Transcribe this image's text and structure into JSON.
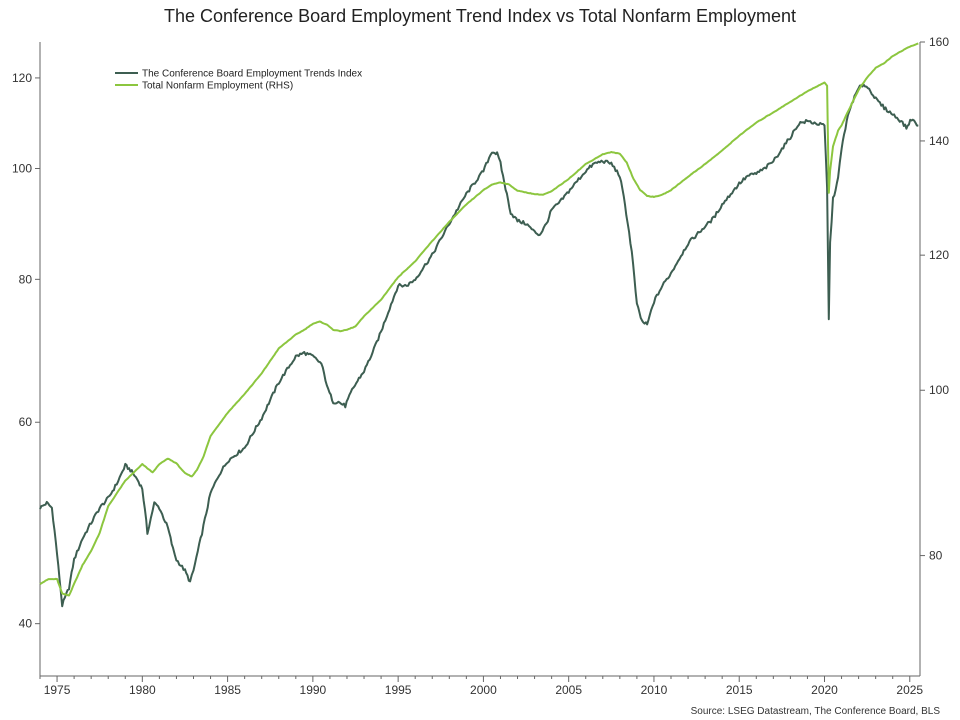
{
  "chart_data": {
    "type": "line",
    "title": "The Conference Board Employment Trend Index vs Total Nonfarm Employment",
    "source": "Source: LSEG Datastream, The Conference Board, BLS",
    "x_range": [
      1974.0,
      2025.6
    ],
    "left_axis": {
      "scale": "log",
      "range": [
        36,
        129
      ],
      "ticks": [
        40,
        60,
        80,
        100,
        120
      ]
    },
    "right_axis": {
      "scale": "log",
      "range": [
        68,
        160
      ],
      "ticks": [
        80,
        100,
        120,
        140,
        160
      ]
    },
    "x_ticks": [
      1975,
      1980,
      1985,
      1990,
      1995,
      2000,
      2005,
      2010,
      2015,
      2020,
      2025
    ],
    "x_tick_labels": [
      "1975",
      "1980",
      "1985",
      "1990",
      "1995",
      "2000",
      "2005",
      "2010",
      "2015",
      "2020",
      "2025"
    ],
    "legend_position": "top-left",
    "grid": false,
    "series": [
      {
        "name": "The Conference Board Employment Trends Index",
        "axis": "left",
        "color": "#3d5e51",
        "x": [
          1974.0,
          1974.4,
          1974.7,
          1975.0,
          1975.3,
          1975.7,
          1976.0,
          1976.5,
          1977.0,
          1977.5,
          1978.0,
          1978.5,
          1979.0,
          1979.3,
          1979.7,
          1980.0,
          1980.3,
          1980.5,
          1980.7,
          1981.0,
          1981.5,
          1981.8,
          1982.0,
          1982.5,
          1982.8,
          1983.0,
          1983.5,
          1984.0,
          1984.5,
          1985.0,
          1986.0,
          1987.0,
          1988.0,
          1989.0,
          1989.5,
          1990.0,
          1990.5,
          1990.9,
          1991.2,
          1991.5,
          1991.9,
          1992.3,
          1992.7,
          1993.0,
          1993.5,
          1994.0,
          1994.5,
          1995.0,
          1995.5,
          1996.0,
          1997.0,
          1998.0,
          1999.0,
          2000.0,
          2000.5,
          2000.8,
          2001.0,
          2001.3,
          2001.6,
          2002.0,
          2002.5,
          2003.0,
          2003.3,
          2003.7,
          2004.0,
          2004.5,
          2005.0,
          2005.5,
          2006.0,
          2006.5,
          2007.0,
          2007.5,
          2008.0,
          2008.3,
          2008.7,
          2009.0,
          2009.3,
          2009.6,
          2010.0,
          2010.5,
          2011.0,
          2011.5,
          2012.0,
          2012.5,
          2013.0,
          2013.5,
          2014.0,
          2014.5,
          2015.0,
          2015.5,
          2016.0,
          2016.5,
          2017.0,
          2017.5,
          2018.0,
          2018.5,
          2019.0,
          2019.5,
          2020.0,
          2020.15,
          2020.25,
          2020.33,
          2020.5,
          2020.8,
          2021.0,
          2021.3,
          2021.6,
          2022.0,
          2022.3,
          2022.7,
          2023.0,
          2023.5,
          2024.0,
          2024.5,
          2024.8,
          2025.1,
          2025.5
        ],
        "values": [
          50.5,
          51.0,
          50.5,
          46.0,
          41.5,
          43.0,
          45.5,
          47.5,
          49.0,
          50.5,
          51.5,
          53.0,
          55.0,
          54.5,
          53.5,
          52.5,
          48.0,
          49.5,
          51.0,
          50.5,
          48.5,
          46.5,
          45.5,
          44.5,
          43.5,
          44.5,
          48.0,
          52.0,
          54.0,
          55.5,
          57.0,
          60.5,
          65.0,
          68.5,
          69.0,
          68.5,
          67.5,
          64.0,
          62.5,
          62.5,
          62.0,
          64.0,
          65.5,
          66.5,
          69.0,
          72.0,
          75.5,
          79.0,
          79.0,
          80.0,
          84.0,
          89.5,
          95.0,
          99.5,
          103.5,
          103.0,
          101.0,
          96.0,
          91.5,
          90.0,
          89.5,
          88.0,
          87.5,
          89.5,
          92.0,
          93.5,
          95.5,
          97.5,
          99.5,
          101.0,
          101.5,
          101.0,
          98.5,
          93.0,
          84.5,
          76.0,
          73.5,
          73.0,
          76.5,
          79.0,
          81.0,
          83.5,
          86.0,
          87.5,
          89.0,
          90.5,
          93.0,
          95.0,
          97.0,
          98.5,
          99.0,
          100.0,
          101.5,
          104.0,
          106.5,
          109.5,
          110.0,
          109.5,
          109.0,
          96.0,
          74.0,
          86.0,
          94.0,
          98.0,
          104.0,
          110.0,
          114.0,
          117.5,
          118.5,
          117.0,
          115.0,
          113.0,
          111.5,
          110.0,
          108.5,
          110.5,
          109.0
        ]
      },
      {
        "name": "Total Nonfarm Employment (RHS)",
        "axis": "right",
        "color": "#8cc63f",
        "x": [
          1974.0,
          1974.5,
          1975.0,
          1975.3,
          1975.7,
          1976.0,
          1976.5,
          1977.0,
          1977.5,
          1978.0,
          1978.5,
          1979.0,
          1979.5,
          1980.0,
          1980.3,
          1980.6,
          1981.0,
          1981.5,
          1982.0,
          1982.5,
          1982.9,
          1983.2,
          1983.6,
          1984.0,
          1985.0,
          1986.0,
          1987.0,
          1988.0,
          1989.0,
          1989.5,
          1990.0,
          1990.4,
          1990.8,
          1991.2,
          1991.6,
          1992.0,
          1992.5,
          1993.0,
          1994.0,
          1995.0,
          1996.0,
          1997.0,
          1998.0,
          1999.0,
          2000.0,
          2000.5,
          2001.0,
          2001.5,
          2002.0,
          2002.5,
          2003.0,
          2003.5,
          2004.0,
          2005.0,
          2006.0,
          2007.0,
          2007.5,
          2008.0,
          2008.4,
          2008.8,
          2009.2,
          2009.6,
          2010.0,
          2010.5,
          2011.0,
          2012.0,
          2013.0,
          2014.0,
          2015.0,
          2016.0,
          2017.0,
          2018.0,
          2019.0,
          2020.0,
          2020.15,
          2020.25,
          2020.33,
          2020.5,
          2020.8,
          2021.0,
          2021.5,
          2022.0,
          2022.5,
          2023.0,
          2023.5,
          2024.0,
          2024.5,
          2025.0,
          2025.5
        ],
        "values": [
          77.0,
          77.5,
          77.5,
          76.0,
          75.8,
          77.0,
          79.0,
          80.5,
          82.5,
          85.5,
          87.0,
          88.5,
          89.5,
          90.5,
          90.0,
          89.5,
          90.5,
          91.2,
          90.6,
          89.4,
          89.0,
          89.8,
          91.5,
          94.0,
          97.0,
          99.5,
          102.3,
          105.8,
          107.8,
          108.5,
          109.4,
          109.7,
          109.3,
          108.5,
          108.3,
          108.5,
          109.0,
          110.5,
          113.0,
          116.5,
          119.0,
          122.3,
          125.5,
          128.5,
          131.0,
          132.0,
          132.4,
          132.0,
          130.9,
          130.6,
          130.3,
          130.2,
          130.8,
          133.0,
          135.7,
          137.5,
          137.9,
          137.6,
          136.0,
          133.0,
          131.0,
          130.0,
          129.8,
          130.2,
          131.0,
          133.4,
          135.7,
          138.2,
          141.0,
          143.5,
          145.5,
          147.6,
          149.7,
          151.5,
          150.8,
          130.5,
          134.5,
          139.0,
          142.0,
          143.0,
          146.5,
          150.0,
          152.5,
          154.5,
          155.5,
          157.0,
          158.0,
          159.0,
          159.7
        ]
      }
    ]
  }
}
